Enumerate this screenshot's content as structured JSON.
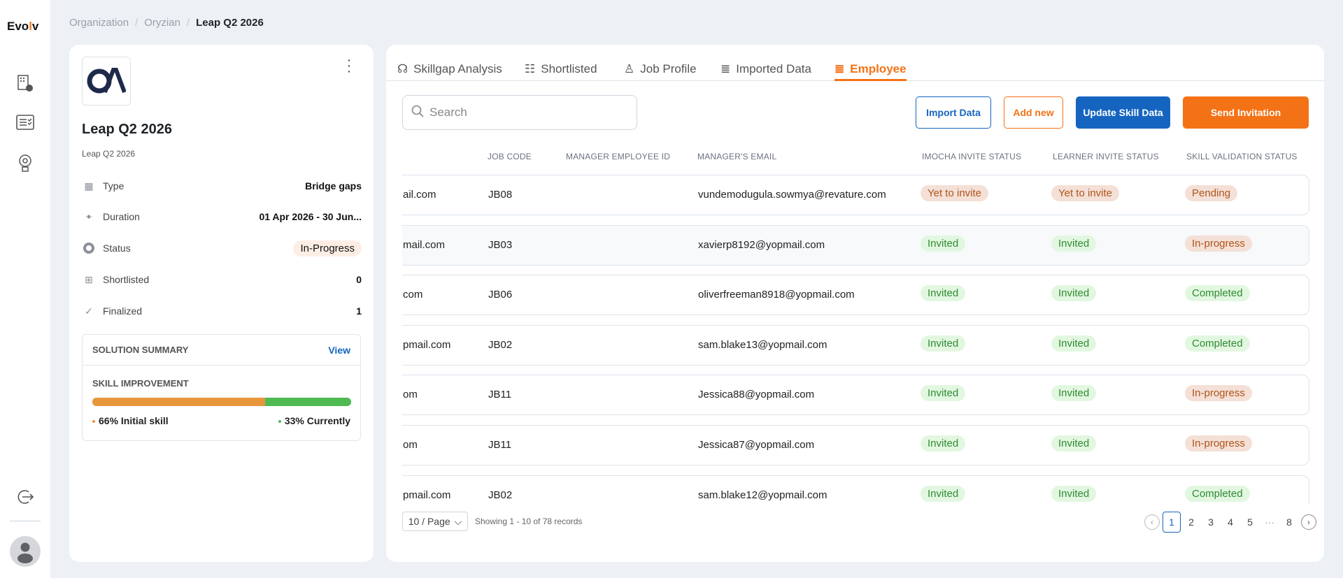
{
  "app": {
    "logo": "Evolv"
  },
  "sidebar": {
    "items": [
      {
        "icon": "building-gear-icon"
      },
      {
        "icon": "checklist-icon"
      },
      {
        "icon": "lightbulb-gear-icon"
      }
    ],
    "logout_icon": "logout-icon",
    "avatar_icon": "user-avatar-icon"
  },
  "breadcrumb": [
    "Organization",
    "Oryzian",
    "Leap Q2 2026"
  ],
  "project": {
    "logo_text": "OA",
    "title": "Leap Q2 2026",
    "subtitle": "Leap Q2 2026",
    "info": [
      {
        "label": "Type",
        "value": "Bridge gaps",
        "icon": "building-icon"
      },
      {
        "label": "Duration",
        "value": "01 Apr 2026 - 30 Jun...",
        "icon": "group-icon"
      },
      {
        "label": "Status",
        "value": "In-Progress",
        "icon": "status-circle-icon"
      },
      {
        "label": "Shortlisted",
        "value": "0",
        "icon": "hand-box-icon"
      },
      {
        "label": "Finalized",
        "value": "1",
        "icon": "verified-badge-icon"
      }
    ],
    "summary": {
      "title": "SOLUTION SUMMARY",
      "view": "View",
      "skill_title": "SKILL IMPROVEMENT",
      "initial_pct": "66%",
      "initial_label": "Initial skill",
      "current_pct": "33%",
      "current_label": "Currently",
      "initial_value": 66,
      "current_value": 33,
      "colors": {
        "initial": "#e8963b",
        "current": "#4fba52"
      }
    }
  },
  "tabs": [
    {
      "label": "Skillgap Analysis",
      "icon": "head-icon"
    },
    {
      "label": "Shortlisted",
      "icon": "checklist-icon"
    },
    {
      "label": "Job Profile",
      "icon": "person-badge-icon"
    },
    {
      "label": "Imported Data",
      "icon": "database-icon"
    },
    {
      "label": "Employee",
      "icon": "database-icon",
      "active": true
    }
  ],
  "toolbar": {
    "search_placeholder": "Search",
    "import": "Import Data",
    "add": "Add new",
    "update": "Update Skill Data",
    "send": "Send Invitation"
  },
  "colors": {
    "primary": "#1565c0",
    "accent": "#f47216"
  },
  "table": {
    "headers": [
      "JOB CODE",
      "MANAGER EMPLOYEE ID",
      "MANAGER'S EMAIL",
      "IMOCHA INVITE STATUS",
      "LEARNER INVITE STATUS",
      "SKILL VALIDATION STATUS"
    ],
    "rows": [
      {
        "email": "ail.com",
        "job": "JB08",
        "mgr_id": "",
        "mgr_email": "vundemodugula.sowmya@revature.com",
        "imocha": "Yet to invite",
        "learner": "Yet to invite",
        "skill": "Pending"
      },
      {
        "email": "mail.com",
        "job": "JB03",
        "mgr_id": "",
        "mgr_email": "xavierp8192@yopmail.com",
        "imocha": "Invited",
        "learner": "Invited",
        "skill": "In-progress"
      },
      {
        "email": "com",
        "job": "JB06",
        "mgr_id": "",
        "mgr_email": "oliverfreeman8918@yopmail.com",
        "imocha": "Invited",
        "learner": "Invited",
        "skill": "Completed"
      },
      {
        "email": "pmail.com",
        "job": "JB02",
        "mgr_id": "",
        "mgr_email": "sam.blake13@yopmail.com",
        "imocha": "Invited",
        "learner": "Invited",
        "skill": "Completed"
      },
      {
        "email": "om",
        "job": "JB11",
        "mgr_id": "",
        "mgr_email": "Jessica88@yopmail.com",
        "imocha": "Invited",
        "learner": "Invited",
        "skill": "In-progress"
      },
      {
        "email": "om",
        "job": "JB11",
        "mgr_id": "",
        "mgr_email": "Jessica87@yopmail.com",
        "imocha": "Invited",
        "learner": "Invited",
        "skill": "In-progress"
      },
      {
        "email": "pmail.com",
        "job": "JB02",
        "mgr_id": "",
        "mgr_email": "sam.blake12@yopmail.com",
        "imocha": "Invited",
        "learner": "Invited",
        "skill": "Completed"
      }
    ]
  },
  "pagination": {
    "per_page": "10 / Page",
    "showing": "Showing 1 - 10 of 78 records",
    "pages": [
      "1",
      "2",
      "3",
      "4",
      "5",
      "···",
      "8"
    ],
    "current": "1"
  }
}
